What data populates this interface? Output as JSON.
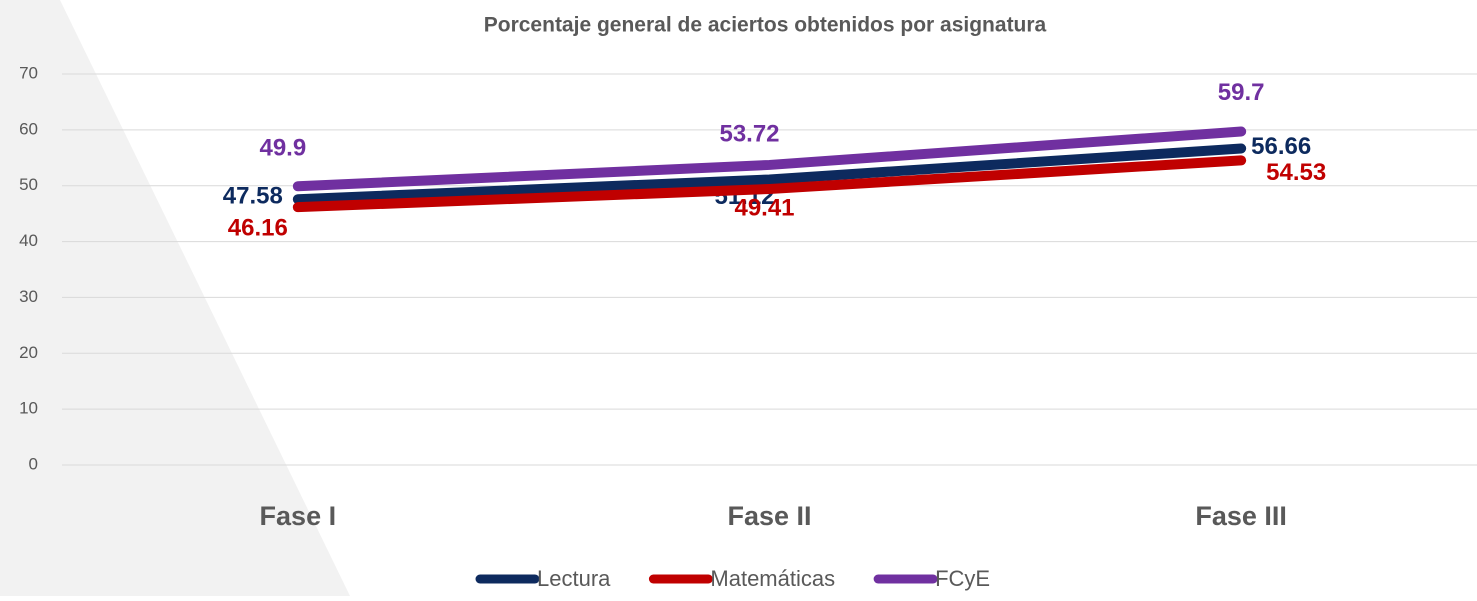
{
  "chart_data": {
    "type": "line",
    "title": "Porcentaje general de aciertos obtenidos por asignatura",
    "categories": [
      "Fase I",
      "Fase II",
      "Fase III"
    ],
    "series": [
      {
        "name": "Lectura",
        "color": "#0d2a5e",
        "values": [
          47.58,
          51.12,
          56.66
        ]
      },
      {
        "name": "Matemáticas",
        "color": "#c00000",
        "values": [
          46.16,
          49.41,
          54.53
        ]
      },
      {
        "name": "FCyE",
        "color": "#7030a0",
        "values": [
          49.9,
          53.72,
          59.7
        ]
      }
    ],
    "ylim": [
      0,
      70
    ],
    "yticks": [
      0,
      10,
      20,
      30,
      40,
      50,
      60,
      70
    ],
    "grid": true,
    "legend": "bottom"
  }
}
